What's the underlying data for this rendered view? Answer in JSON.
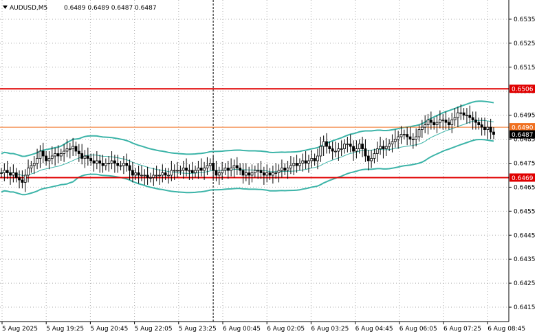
{
  "header": {
    "symbol": "AUDUSD,M5",
    "ohlc": "0.6489 0.6489 0.6487 0.6487"
  },
  "chart_data": {
    "type": "candlestick",
    "title": "AUDUSD,M5",
    "ylim": [
      0.6409,
      0.6543
    ],
    "y_ticks": [
      "0.6535",
      "0.6525",
      "0.6515",
      "0.6505",
      "0.6495",
      "0.6485",
      "0.6475",
      "0.6465",
      "0.6455",
      "0.6445",
      "0.6435",
      "0.6425",
      "0.6415"
    ],
    "x_ticks": [
      "5 Aug 2025",
      "5 Aug 19:25",
      "5 Aug 20:45",
      "5 Aug 22:05",
      "5 Aug 23:25",
      "6 Aug 00:45",
      "6 Aug 02:05",
      "6 Aug 03:25",
      "6 Aug 04:45",
      "6 Aug 06:05",
      "6 Aug 07:25",
      "6 Aug 08:45"
    ],
    "price_levels": [
      {
        "label": "0.6506",
        "value": 0.6506,
        "color": "#e00000"
      },
      {
        "label": "0.6469",
        "value": 0.6469,
        "color": "#e00000"
      },
      {
        "label": "0.6490",
        "value": 0.649,
        "color": "#f07020"
      },
      {
        "label": "0.6487",
        "value": 0.6487,
        "color": "#000000"
      }
    ],
    "period_separator_index": 71,
    "price": [
      0.6471,
      0.6472,
      0.6471,
      0.647,
      0.6471,
      0.6469,
      0.6468,
      0.6467,
      0.647,
      0.6473,
      0.6474,
      0.6475,
      0.6477,
      0.648,
      0.6478,
      0.6476,
      0.6477,
      0.6478,
      0.6479,
      0.6478,
      0.6479,
      0.648,
      0.6481,
      0.6481,
      0.6482,
      0.648,
      0.6479,
      0.6477,
      0.6478,
      0.6477,
      0.6476,
      0.6475,
      0.6476,
      0.6475,
      0.6474,
      0.6475,
      0.6475,
      0.6476,
      0.6475,
      0.6474,
      0.6474,
      0.6475,
      0.6474,
      0.6472,
      0.647,
      0.6471,
      0.647,
      0.647,
      0.647,
      0.6469,
      0.6469,
      0.647,
      0.647,
      0.647,
      0.6471,
      0.647,
      0.647,
      0.6472,
      0.6472,
      0.6472,
      0.6472,
      0.6473,
      0.6472,
      0.6472,
      0.6471,
      0.6472,
      0.6473,
      0.6472,
      0.6473,
      0.6474,
      0.6475,
      0.6472,
      0.647,
      0.6471,
      0.6472,
      0.6473,
      0.6472,
      0.6473,
      0.6474,
      0.6473,
      0.6472,
      0.647,
      0.6471,
      0.647,
      0.6471,
      0.6472,
      0.6472,
      0.6471,
      0.647,
      0.6471,
      0.647,
      0.6471,
      0.6471,
      0.6472,
      0.6473,
      0.6472,
      0.6473,
      0.6474,
      0.6475,
      0.6474,
      0.6475,
      0.6476,
      0.6475,
      0.6476,
      0.6477,
      0.6476,
      0.6478,
      0.6482,
      0.6484,
      0.6482,
      0.6481,
      0.648,
      0.648,
      0.6481,
      0.6481,
      0.6483,
      0.6483,
      0.6482,
      0.648,
      0.6481,
      0.6483,
      0.6481,
      0.6478,
      0.6476,
      0.6477,
      0.6479,
      0.6481,
      0.6482,
      0.6481,
      0.6482,
      0.6483,
      0.6484,
      0.6485,
      0.6486,
      0.6487,
      0.6487,
      0.6486,
      0.6485,
      0.6485,
      0.6486,
      0.6489,
      0.649,
      0.6491,
      0.6493,
      0.6492,
      0.6491,
      0.6492,
      0.6493,
      0.6493,
      0.6492,
      0.6491,
      0.6493,
      0.6494,
      0.6496,
      0.6496,
      0.6495,
      0.6495,
      0.6494,
      0.6493,
      0.6492,
      0.6491,
      0.649,
      0.6489,
      0.649,
      0.6488,
      0.6487
    ]
  },
  "colors": {
    "candle": "#000000",
    "outer_band": "#3cb4a8",
    "middle_band": "#3cb4a8",
    "grid": "#a8a8a8",
    "support_resistance": "#e00000",
    "bid_line": "#f07020"
  }
}
